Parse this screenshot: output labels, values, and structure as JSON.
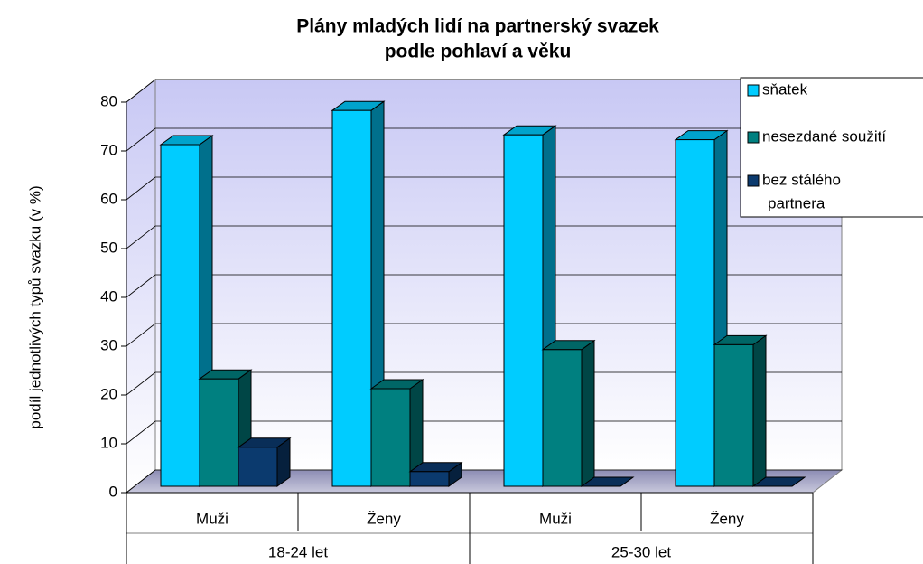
{
  "chart_data": {
    "type": "bar3d",
    "title": [
      "Plány mladých lidí na partnerský svazek",
      "podle pohlaví a věku"
    ],
    "ylabel": "podíl jednotlivých typů svazku (v %)",
    "categories": [
      "Muži",
      "Ženy",
      "Muži",
      "Ženy"
    ],
    "groups": [
      "18-24 let",
      "25-30 let"
    ],
    "series": [
      {
        "name": "sňatek",
        "color": "#00ccff",
        "values": [
          70,
          77,
          72,
          71
        ]
      },
      {
        "name": "nesezdané soužití",
        "color": "#008080",
        "values": [
          22,
          20,
          28,
          29
        ]
      },
      {
        "name": [
          "bez stálého",
          "partnera"
        ],
        "color": "#0b3a6e",
        "values": [
          8,
          3,
          0,
          0
        ]
      }
    ],
    "ylim": [
      0,
      80
    ],
    "yticks": [
      0,
      10,
      20,
      30,
      40,
      50,
      60,
      70,
      80
    ],
    "grid": true,
    "legend": "top-right"
  }
}
